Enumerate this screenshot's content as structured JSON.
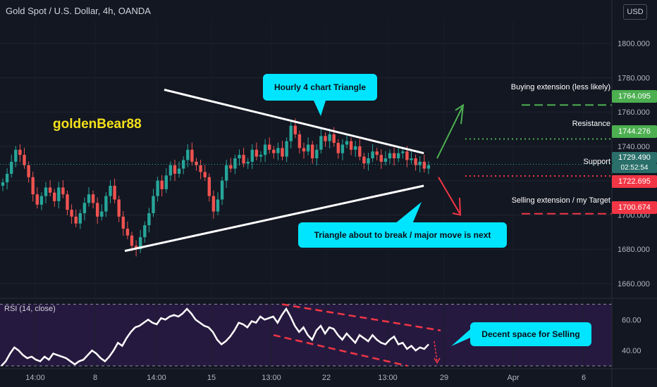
{
  "header": {
    "title": "Gold Spot / U.S. Dollar, 4h, OANDA",
    "currency_button": "USD"
  },
  "watermark": "goldenBear88",
  "colors": {
    "background": "#131722",
    "bull": "#26a69a",
    "bear": "#ef5350",
    "rsi_bg": "#2a1a44",
    "callout": "#00e5ff",
    "buy_level": "#4caf50",
    "sell_level": "#f23645"
  },
  "annotations": {
    "triangle_callout": "Hourly 4 chart Triangle",
    "break_callout": "Triangle about to break / major move is next",
    "rsi_callout": "Decent space for Selling"
  },
  "levels": [
    {
      "label": "Buying extension (less likely)",
      "price": "1764.095",
      "color": "#4caf50",
      "value": 1764.095
    },
    {
      "label": "Resistance",
      "price": "1744.276",
      "color": "#4caf50",
      "value": 1744.276
    },
    {
      "label": "Support",
      "price": "1722.695",
      "color": "#f23645",
      "value": 1722.695
    },
    {
      "label": "Selling extension / my Target",
      "price": "1700.674",
      "color": "#f23645",
      "value": 1700.674
    }
  ],
  "last_price": {
    "price": "1729.490",
    "countdown": "02:52:54",
    "value": 1729.49
  },
  "rsi_label": "RSI (14, close)",
  "chart_data": [
    {
      "type": "candlestick",
      "title": "Gold Spot / U.S. Dollar, 4h, OANDA",
      "y_ticks": [
        "1660.000",
        "1680.000",
        "1700.000",
        "1720.000",
        "1740.000",
        "1760.000",
        "1780.000",
        "1800.000"
      ],
      "y_tick_values": [
        1660,
        1680,
        1700,
        1720,
        1740,
        1760,
        1780,
        1800
      ],
      "ylim": [
        1653,
        1813
      ],
      "x_ticks": [
        "14:00",
        "8",
        "14:00",
        "15",
        "13:00",
        "22",
        "13:00",
        "29",
        "Apr",
        "6"
      ],
      "closes": [
        1719,
        1724,
        1731,
        1738,
        1735,
        1729,
        1722,
        1712,
        1706,
        1711,
        1716,
        1713,
        1708,
        1716,
        1712,
        1703,
        1699,
        1695,
        1701,
        1707,
        1712,
        1707,
        1699,
        1702,
        1711,
        1717,
        1709,
        1699,
        1692,
        1688,
        1682,
        1680,
        1687,
        1694,
        1701,
        1711,
        1720,
        1715,
        1723,
        1729,
        1724,
        1727,
        1732,
        1738,
        1731,
        1729,
        1725,
        1722,
        1711,
        1702,
        1709,
        1720,
        1729,
        1727,
        1733,
        1735,
        1730,
        1731,
        1738,
        1734,
        1735,
        1741,
        1738,
        1736,
        1739,
        1734,
        1743,
        1752,
        1747,
        1739,
        1737,
        1741,
        1733,
        1738,
        1746,
        1743,
        1747,
        1742,
        1736,
        1741,
        1743,
        1738,
        1740,
        1734,
        1730,
        1733,
        1737,
        1735,
        1731,
        1733,
        1736,
        1733,
        1736,
        1737,
        1732,
        1733,
        1729,
        1731,
        1727,
        1729
      ],
      "triangle_upper": [
        [
          0.25,
          1773
        ],
        [
          0.645,
          1736
        ]
      ],
      "triangle_lower": [
        [
          0.19,
          1679
        ],
        [
          0.645,
          1717
        ]
      ]
    },
    {
      "type": "line",
      "title": "RSI (14, close)",
      "y_ticks": [
        "40.00",
        "60.00"
      ],
      "y_tick_values": [
        40,
        60
      ],
      "ylim": [
        30,
        72
      ],
      "values": [
        30,
        33,
        38,
        42,
        40,
        37,
        35,
        36,
        34,
        33,
        36,
        34,
        38,
        37,
        36,
        35,
        33,
        31,
        33,
        34,
        37,
        40,
        38,
        35,
        33,
        36,
        40,
        45,
        43,
        48,
        52,
        55,
        56,
        58,
        60,
        58,
        57,
        61,
        60,
        62,
        63,
        62,
        64,
        67,
        64,
        60,
        58,
        56,
        55,
        52,
        47,
        44,
        46,
        49,
        53,
        58,
        57,
        55,
        59,
        58,
        62,
        60,
        61,
        62,
        58,
        63,
        67,
        62,
        56,
        52,
        55,
        50,
        47,
        53,
        56,
        51,
        55,
        54,
        50,
        47,
        51,
        48,
        45,
        50,
        48,
        46,
        50,
        47,
        45,
        44,
        47,
        49,
        44,
        45,
        41,
        43,
        40,
        42,
        41,
        44
      ]
    }
  ]
}
